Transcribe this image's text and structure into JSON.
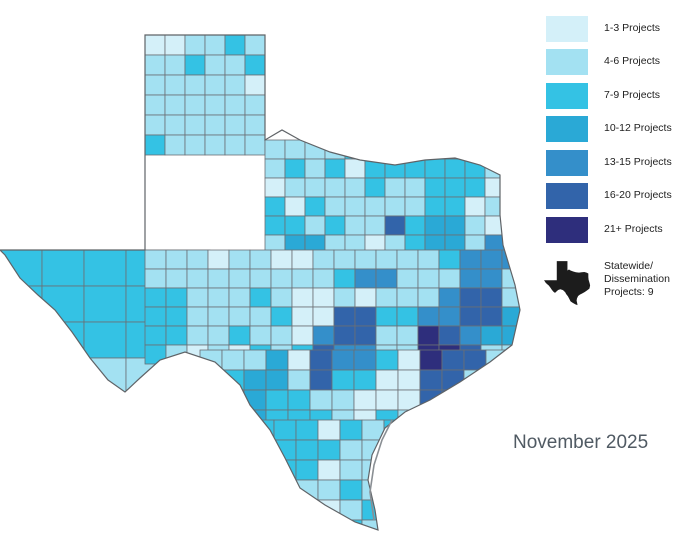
{
  "map": {
    "region": "Texas",
    "colors": {
      "1-3": "#d4f0f9",
      "4-6": "#a3e1f2",
      "7-9": "#34c2e4",
      "10-12": "#2aa9d6",
      "13-15": "#348fca",
      "16-20": "#3264aa",
      "21+": "#2e2e7c"
    },
    "ramp_order": [
      "1-3",
      "4-6",
      "7-9",
      "10-12",
      "13-15",
      "16-20",
      "21+"
    ]
  },
  "legend": {
    "items": [
      {
        "label": "1-3 Projects",
        "color": "#d4f0f9"
      },
      {
        "label": "4-6 Projects",
        "color": "#a3e1f2"
      },
      {
        "label": "7-9 Projects",
        "color": "#34c2e4"
      },
      {
        "label": "10-12 Projects",
        "color": "#2aa9d6"
      },
      {
        "label": "13-15 Projects",
        "color": "#348fca"
      },
      {
        "label": "16-20 Projects",
        "color": "#3264aa"
      },
      {
        "label": "21+ Projects",
        "color": "#2e2e7c"
      }
    ],
    "statewide": {
      "line1": "Statewide/",
      "line2": "Dissemination",
      "line3": "Projects: 9",
      "icon": "texas-silhouette-icon",
      "color": "#1c1c1c"
    }
  },
  "date_label": "November 2025"
}
